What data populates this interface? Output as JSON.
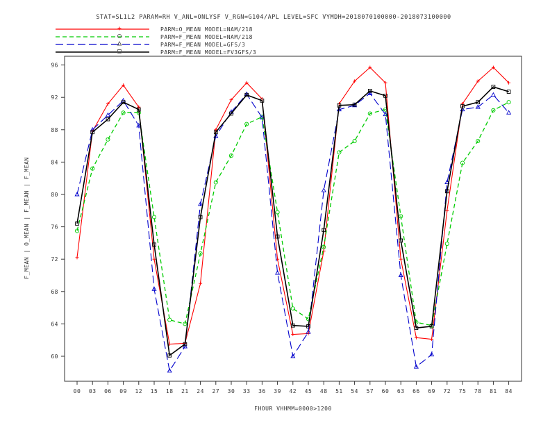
{
  "chart_data": {
    "type": "line",
    "title": "STAT=SL1L2 PARAM=RH V_ANL=ONLYSF V_RGN=G104/APL LEVEL=SFC VYMDH=2018070100000-2018073100000",
    "xlabel": "FHOUR VHHMM=0000>1200",
    "ylabel": "F_MEAN | O_MEAN | F_MEAN | F_MEAN",
    "categories": [
      "00",
      "03",
      "06",
      "09",
      "12",
      "15",
      "18",
      "21",
      "24",
      "27",
      "30",
      "33",
      "36",
      "39",
      "42",
      "45",
      "48",
      "51",
      "54",
      "57",
      "60",
      "63",
      "66",
      "69",
      "72",
      "75",
      "78",
      "81",
      "84"
    ],
    "ylim": [
      56,
      98
    ],
    "yticks": [
      60,
      64,
      68,
      72,
      76,
      80,
      84,
      88,
      92,
      96
    ],
    "grid": false,
    "legend_position": "top-left",
    "series": [
      {
        "name": "PARM=O_MEAN MODEL=NAM/218",
        "color": "#ff0000",
        "dash": "solid",
        "marker": "plus",
        "values": [
          72.2,
          87.8,
          91.2,
          93.5,
          90.8,
          72.0,
          61.5,
          61.6,
          69.0,
          88.0,
          91.7,
          93.8,
          91.8,
          72.0,
          62.7,
          62.8,
          73.0,
          91.2,
          94.0,
          95.7,
          93.8,
          72.0,
          62.3,
          62.1,
          78.0,
          91.2,
          94.0,
          95.7,
          93.8
        ]
      },
      {
        "name": "PARM=F_MEAN MODEL=NAM/218",
        "color": "#00cc00",
        "dash": "dashed",
        "marker": "circle",
        "values": [
          75.5,
          83.2,
          86.8,
          90.1,
          90.1,
          77.2,
          64.5,
          64.0,
          72.7,
          81.5,
          84.8,
          88.7,
          89.6,
          77.8,
          65.9,
          64.6,
          73.5,
          85.2,
          86.6,
          90.0,
          90.5,
          77.3,
          64.2,
          63.8,
          73.9,
          83.9,
          86.6,
          90.4,
          91.4
        ]
      },
      {
        "name": "PARM=F_MEAN MODEL=GFS/3",
        "color": "#0000cc",
        "dash": "longdash",
        "marker": "triangle",
        "values": [
          80.0,
          88.0,
          89.8,
          91.6,
          88.5,
          68.3,
          58.2,
          61.2,
          78.8,
          87.2,
          90.2,
          92.4,
          89.5,
          70.3,
          60.0,
          63.0,
          80.5,
          90.5,
          91.0,
          92.5,
          89.9,
          70.0,
          58.7,
          60.2,
          81.5,
          90.5,
          90.8,
          92.3,
          90.1
        ]
      },
      {
        "name": "PARM=F_MEAN MODEL=FV3GFS/3",
        "color": "#000000",
        "dash": "solid",
        "marker": "square",
        "values": [
          76.4,
          87.7,
          89.3,
          91.4,
          90.5,
          73.8,
          60.1,
          61.5,
          77.2,
          87.7,
          90.0,
          92.3,
          91.6,
          74.8,
          63.8,
          63.7,
          75.6,
          91.0,
          91.1,
          92.8,
          92.2,
          74.3,
          63.5,
          63.7,
          80.4,
          90.9,
          91.4,
          93.3,
          92.7
        ]
      }
    ]
  }
}
